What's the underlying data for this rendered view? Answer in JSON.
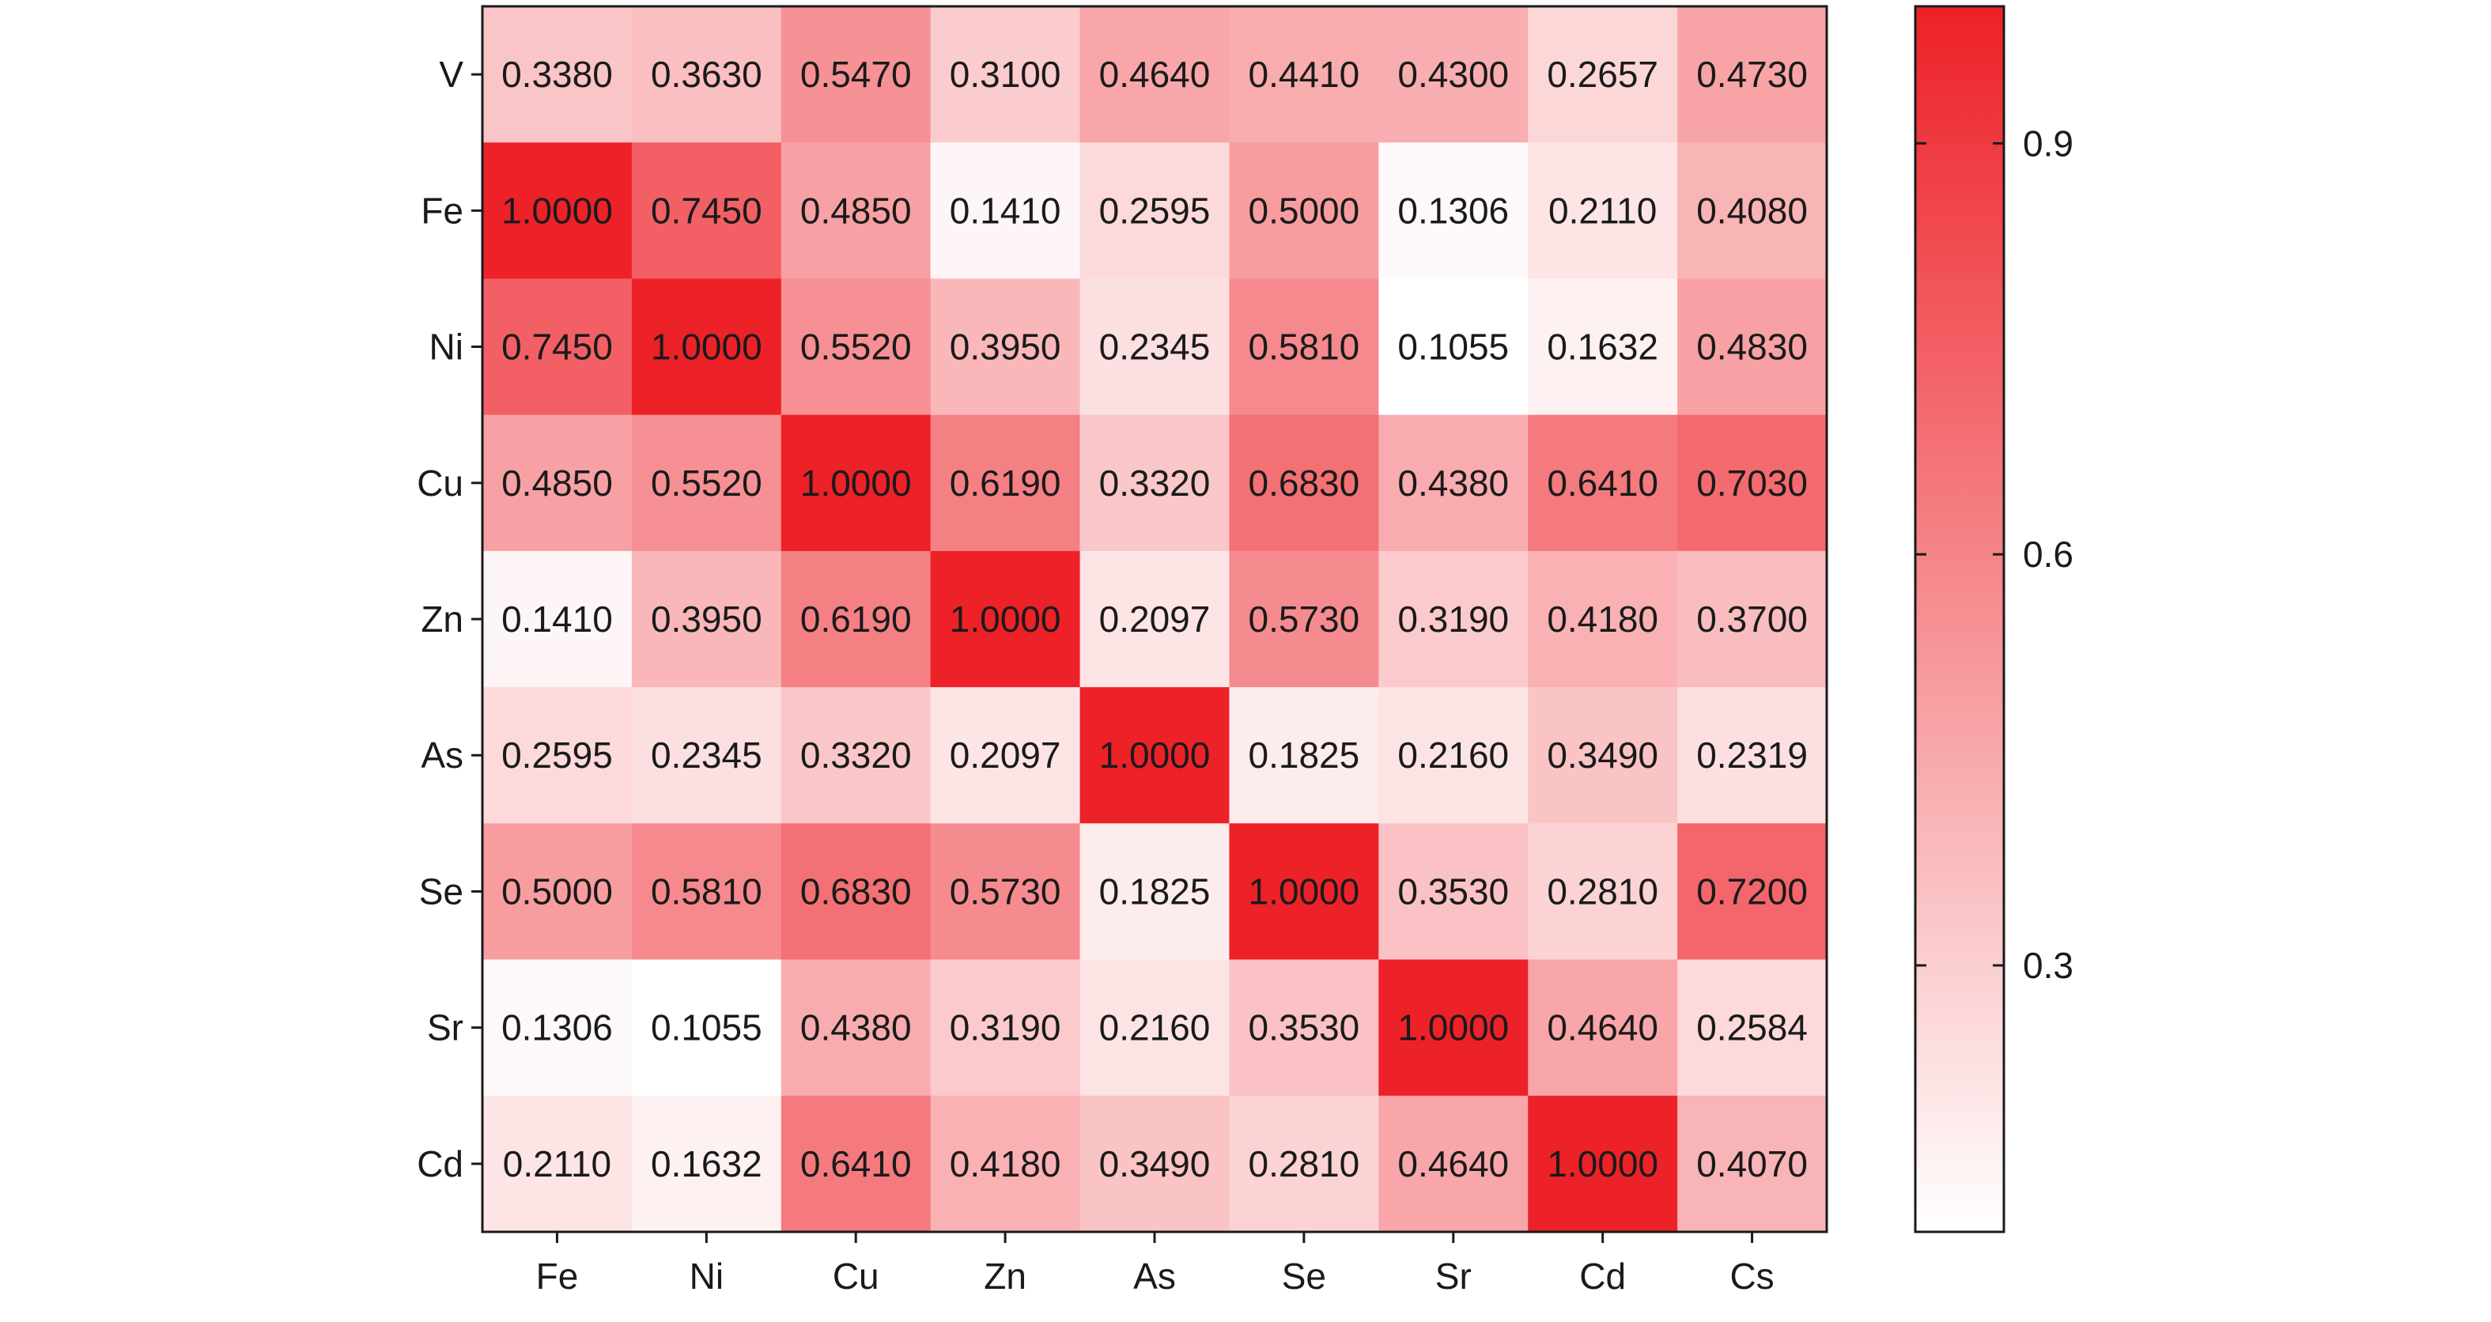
{
  "chart_data": {
    "type": "heatmap",
    "title": "",
    "xlabel": "",
    "ylabel": "",
    "x_categories": [
      "Fe",
      "Ni",
      "Cu",
      "Zn",
      "As",
      "Se",
      "Sr",
      "Cd",
      "Cs"
    ],
    "y_categories": [
      "V",
      "Fe",
      "Ni",
      "Cu",
      "Zn",
      "As",
      "Se",
      "Sr",
      "Cd"
    ],
    "value_labels": [
      [
        "0.3380",
        "0.3630",
        "0.5470",
        "0.3100",
        "0.4640",
        "0.4410",
        "0.4300",
        "0.2657",
        "0.4730"
      ],
      [
        "1.0000",
        "0.7450",
        "0.4850",
        "0.1410",
        "0.2595",
        "0.5000",
        "0.1306",
        "0.2110",
        "0.4080"
      ],
      [
        "0.7450",
        "1.0000",
        "0.5520",
        "0.3950",
        "0.2345",
        "0.5810",
        "0.1055",
        "0.1632",
        "0.4830"
      ],
      [
        "0.4850",
        "0.5520",
        "1.0000",
        "0.6190",
        "0.3320",
        "0.6830",
        "0.4380",
        "0.6410",
        "0.7030"
      ],
      [
        "0.1410",
        "0.3950",
        "0.6190",
        "1.0000",
        "0.2097",
        "0.5730",
        "0.3190",
        "0.4180",
        "0.3700"
      ],
      [
        "0.2595",
        "0.2345",
        "0.3320",
        "0.2097",
        "1.0000",
        "0.1825",
        "0.2160",
        "0.3490",
        "0.2319"
      ],
      [
        "0.5000",
        "0.5810",
        "0.6830",
        "0.5730",
        "0.1825",
        "1.0000",
        "0.3530",
        "0.2810",
        "0.7200"
      ],
      [
        "0.1306",
        "0.1055",
        "0.4380",
        "0.3190",
        "0.2160",
        "0.3530",
        "1.0000",
        "0.4640",
        "0.2584"
      ],
      [
        "0.2110",
        "0.1632",
        "0.6410",
        "0.4180",
        "0.3490",
        "0.2810",
        "0.4640",
        "1.0000",
        "0.4070"
      ]
    ],
    "colorbar": {
      "range": [
        0.1055,
        1.0
      ],
      "tick_values": [
        0.3,
        0.6,
        0.9
      ],
      "tick_labels": [
        "0.3",
        "0.6",
        "0.9"
      ],
      "color_low": "#ffffff",
      "color_high": "#ed2128"
    },
    "grid": false,
    "legend": "colorbar-right"
  }
}
